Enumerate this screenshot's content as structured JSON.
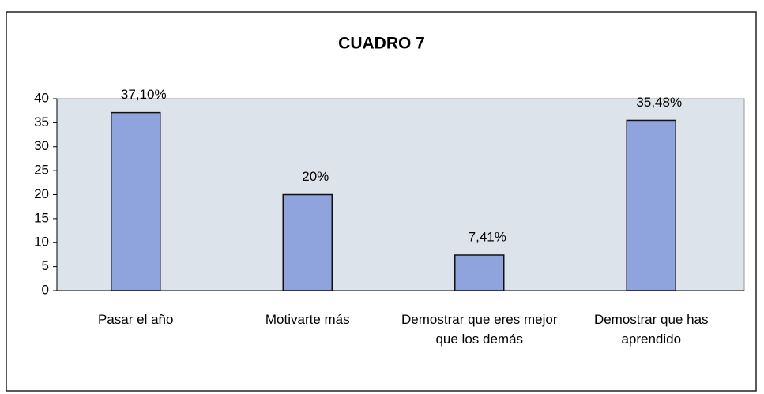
{
  "chart_data": {
    "type": "bar",
    "title": "CUADRO 7",
    "categories": [
      "Pasar el año",
      "Motivarte más",
      "Demostrar que eres mejor que los demás",
      "Demostrar que has aprendido"
    ],
    "values": [
      37.1,
      20,
      7.41,
      35.48
    ],
    "value_labels": [
      "37,10%",
      "20%",
      "7,41%",
      "35,48%"
    ],
    "color": "#8fa3dc",
    "ylim": [
      0,
      40
    ],
    "yticks": [
      0,
      5,
      10,
      15,
      20,
      25,
      30,
      35,
      40
    ],
    "grid": false
  }
}
